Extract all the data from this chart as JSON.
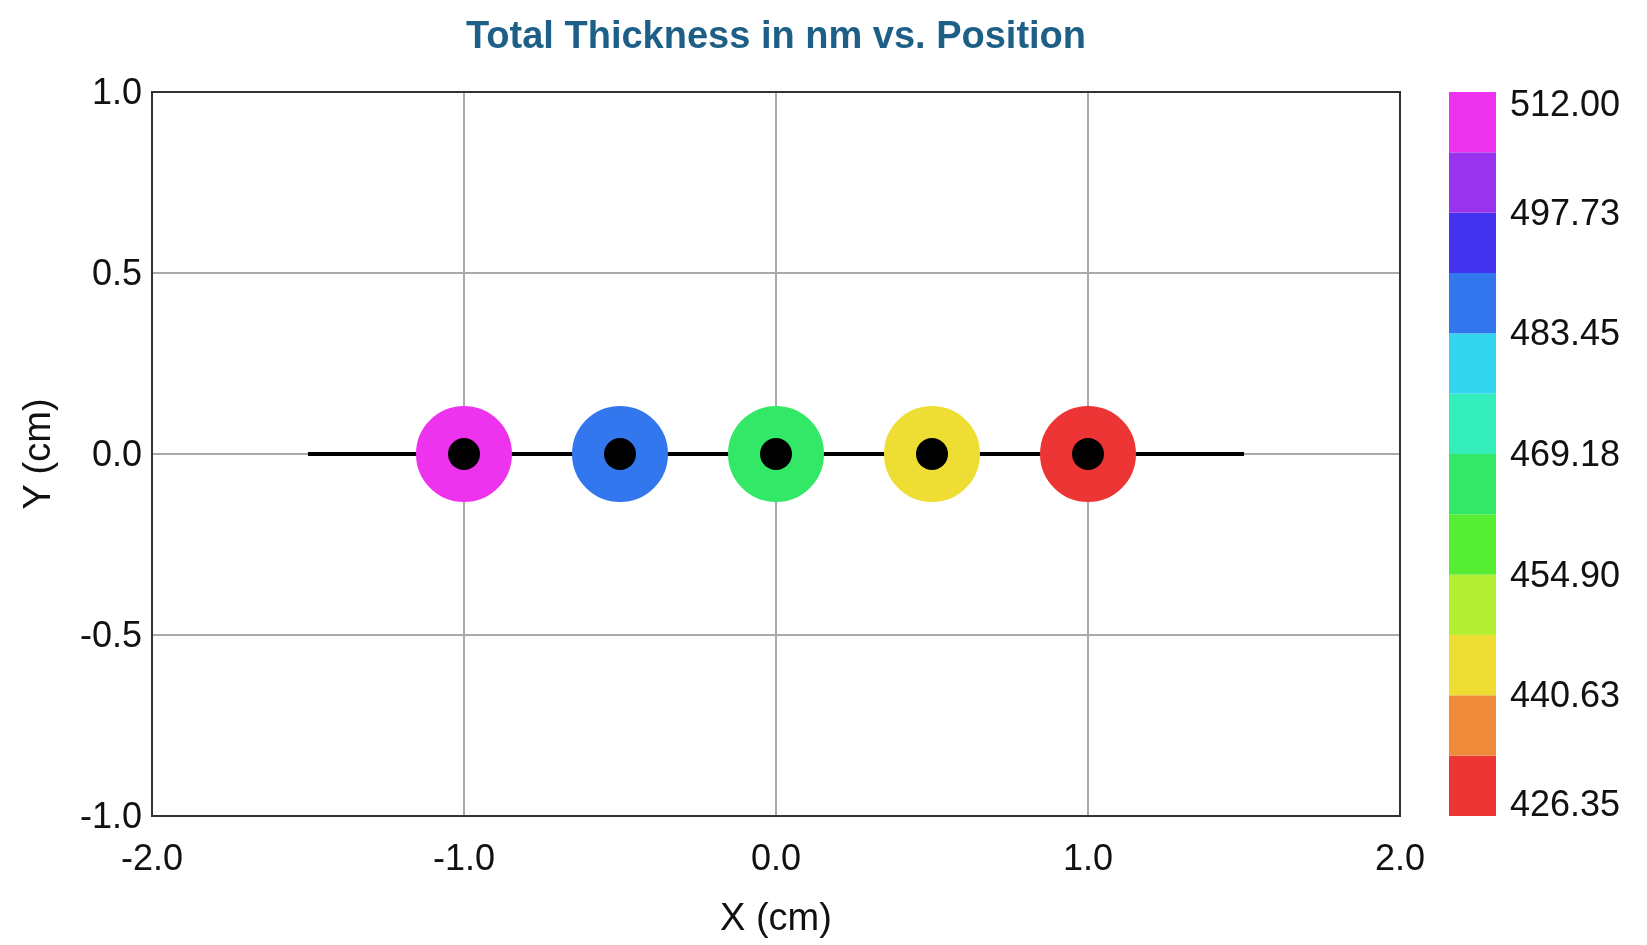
{
  "chart_data": {
    "type": "scatter",
    "title": "Total Thickness in nm vs. Position",
    "xlabel": "X (cm)",
    "ylabel": "Y (cm)",
    "x": [
      -1,
      -0.5,
      0,
      0.5,
      1
    ],
    "series": [
      {
        "type": "line",
        "x": [
          -1.5,
          1.5
        ],
        "values": [
          0,
          0
        ],
        "color": "#000000",
        "marker": "none"
      },
      {
        "type": "scatter",
        "values": [
          0,
          0,
          0,
          0,
          0
        ],
        "cvalues": [
          512,
          487,
          465,
          444,
          426.35
        ],
        "colors": [
          "#ee33ee",
          "#3377ee",
          "#33e866",
          "#eedd33",
          "#ee3535"
        ]
      },
      {
        "values": [
          0,
          0,
          0,
          0,
          0
        ],
        "color": "#000000"
      }
    ],
    "marker": "circle",
    "grid": true,
    "xlim": [
      -2,
      2
    ],
    "xticks": [
      {
        "value": -2,
        "label": "-2.0"
      },
      {
        "value": -1,
        "label": "-1.0"
      },
      {
        "value": 0,
        "label": "0.0"
      },
      {
        "value": 1,
        "label": "1.0"
      },
      {
        "value": 2,
        "label": "2.0"
      }
    ],
    "ylim": [
      -1,
      1
    ],
    "yticks": [
      {
        "value": -1,
        "label": "-1.0"
      },
      {
        "value": -0.5,
        "label": "-0.5"
      },
      {
        "value": 0,
        "label": "0.0"
      },
      {
        "value": 0.5,
        "label": "0.5"
      },
      {
        "value": 1,
        "label": "1.0"
      }
    ],
    "clim": [
      426.35,
      512
    ],
    "cticks": [
      {
        "value": 426.35,
        "label": "426.35"
      },
      {
        "value": 440.63,
        "label": "440.63"
      },
      {
        "value": 454.9,
        "label": "454.90"
      },
      {
        "value": 469.18,
        "label": "469.18"
      },
      {
        "value": 483.45,
        "label": "483.45"
      },
      {
        "value": 497.73,
        "label": "497.73"
      },
      {
        "value": 512,
        "label": "512.00"
      }
    ]
  }
}
